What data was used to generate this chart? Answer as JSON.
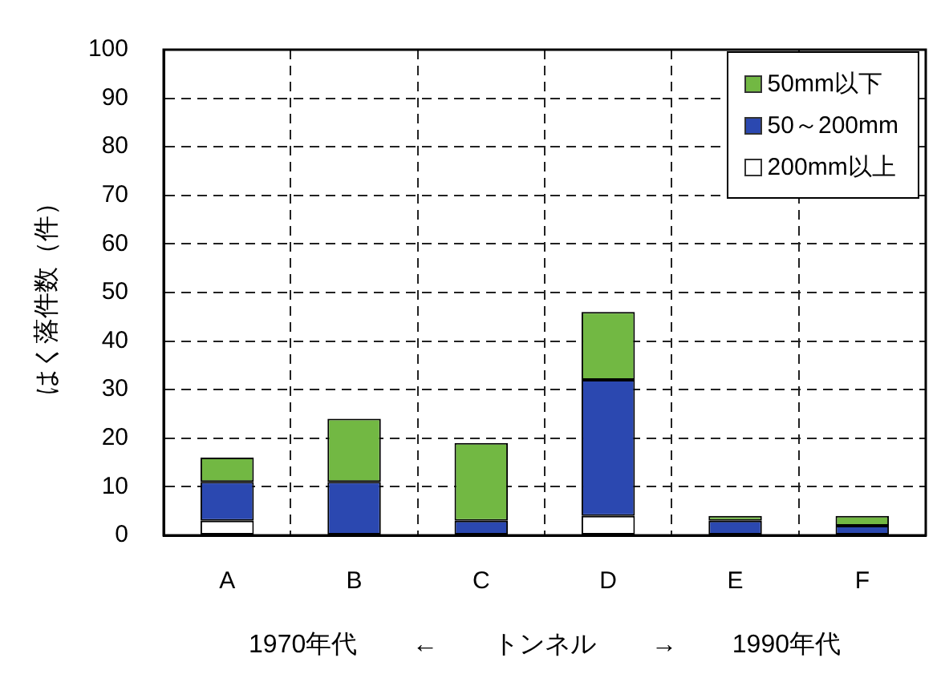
{
  "chart_data": {
    "type": "bar",
    "stacked": true,
    "categories": [
      "A",
      "B",
      "C",
      "D",
      "E",
      "F"
    ],
    "series": [
      {
        "name": "200mm以上",
        "color": "#ffffff",
        "values": [
          3,
          0,
          0,
          4,
          0,
          0
        ]
      },
      {
        "name": "50～200mm",
        "color": "#2b48b0",
        "values": [
          8,
          11,
          3,
          28,
          3,
          2
        ]
      },
      {
        "name": "50mm以下",
        "color": "#72b843",
        "values": [
          5,
          13,
          16,
          14,
          1,
          2
        ]
      }
    ],
    "ylim": [
      0,
      100
    ],
    "yticks": [
      0,
      10,
      20,
      30,
      40,
      50,
      60,
      70,
      80,
      90,
      100
    ],
    "ylabel": "はく落件数（件）",
    "xlabel": "1970年代 ← トンネル → 1990年代",
    "grid": true,
    "legend": "top right"
  }
}
